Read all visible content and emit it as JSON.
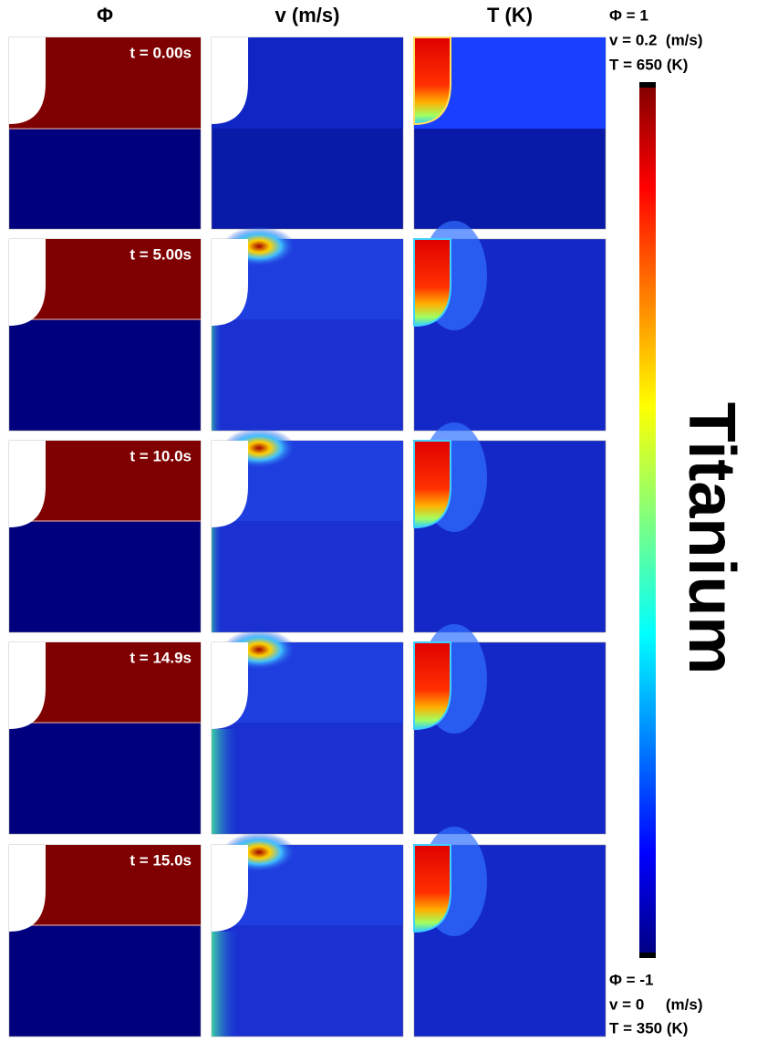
{
  "headers": [
    "Φ",
    "v (m/s)",
    "T (K)"
  ],
  "times": [
    "t = 0.00s",
    "t = 5.00s",
    "t = 10.0s",
    "t = 14.9s",
    "t = 15.0s"
  ],
  "colorbar": {
    "top": [
      "Φ = 1",
      "v = 0.2  (m/s)",
      "T = 650 (K)"
    ],
    "bottom": [
      "Φ = -1",
      "v = 0     (m/s)",
      "T = 350 (K)"
    ]
  },
  "material": "Titanium"
}
